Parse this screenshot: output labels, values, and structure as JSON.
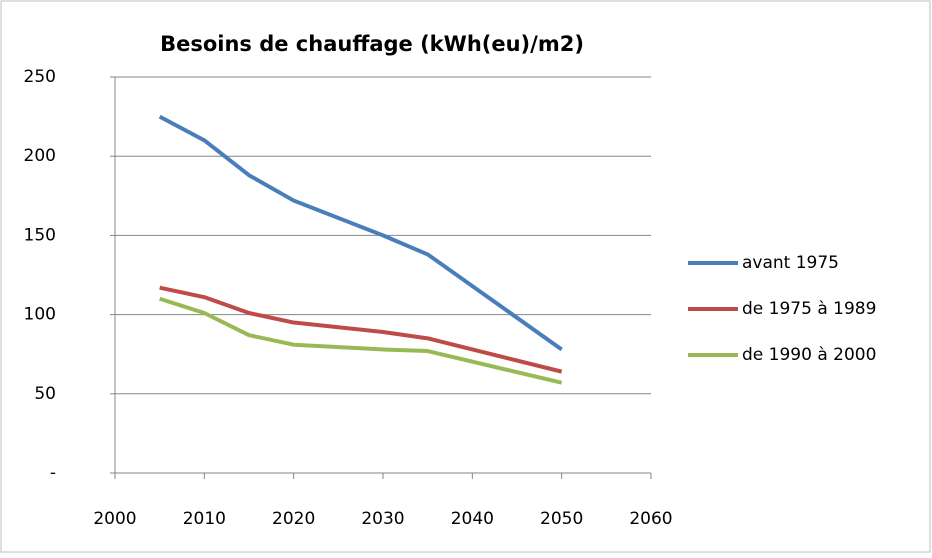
{
  "chart_data": {
    "type": "line",
    "title": "Besoins de chauffage (kWh(eu)/m2)",
    "x": [
      2005,
      2010,
      2015,
      2020,
      2030,
      2035,
      2050
    ],
    "series": [
      {
        "name": "avant 1975",
        "color": "#4a7ebb",
        "values": [
          225,
          210,
          188,
          172,
          150,
          138,
          78
        ]
      },
      {
        "name": "de 1975 à 1989",
        "color": "#be4b48",
        "values": [
          117,
          111,
          101,
          95,
          89,
          85,
          64
        ]
      },
      {
        "name": "de 1990 à 2000",
        "color": "#98b954",
        "values": [
          110,
          101,
          87,
          81,
          78,
          77,
          57
        ]
      }
    ],
    "xlim": [
      2000,
      2060
    ],
    "xticks": [
      2000,
      2010,
      2020,
      2030,
      2040,
      2050,
      2060
    ],
    "ylim": [
      0,
      250
    ],
    "yticks": [
      {
        "value": 0,
        "label": "-"
      },
      50,
      100,
      150,
      200,
      250
    ],
    "grid": true,
    "legend": "right"
  }
}
